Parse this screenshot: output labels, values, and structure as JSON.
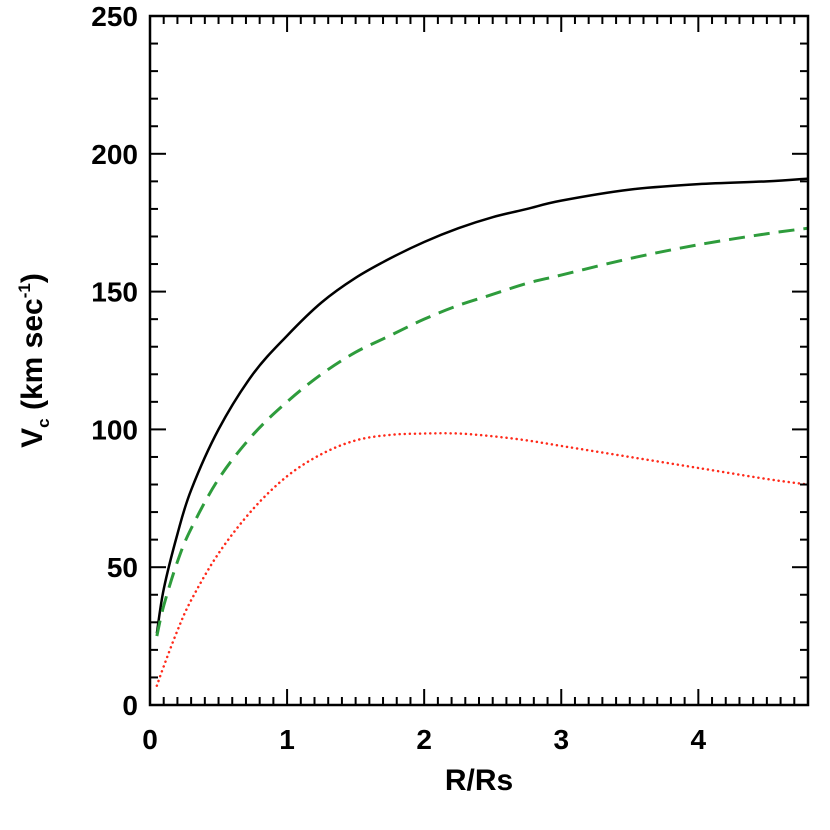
{
  "chart_data": {
    "type": "line",
    "title": "",
    "xlabel": "R/Rs",
    "ylabel": {
      "main": "V",
      "sub": "c",
      "units_start": " (km sec",
      "sup": "-1",
      "units_end": ")"
    },
    "xlim": [
      0,
      4.8
    ],
    "ylim": [
      0,
      250
    ],
    "xticks": [
      0,
      1,
      2,
      3,
      4
    ],
    "yticks": [
      0,
      50,
      100,
      150,
      200,
      250
    ],
    "grid": false,
    "legend": "none",
    "series": [
      {
        "style": "solid",
        "color": "#000000",
        "x": [
          0.05,
          0.1,
          0.2,
          0.3,
          0.5,
          0.75,
          1.0,
          1.25,
          1.5,
          1.75,
          2.0,
          2.25,
          2.5,
          2.75,
          3.0,
          3.5,
          4.0,
          4.5,
          4.8
        ],
        "y": [
          26,
          42,
          62,
          78,
          100,
          120,
          134,
          146,
          155,
          162,
          168,
          173,
          177,
          180,
          183,
          187,
          189,
          190,
          191
        ]
      },
      {
        "style": "dashed",
        "color": "#2e9c3c",
        "x": [
          0.05,
          0.1,
          0.2,
          0.3,
          0.5,
          0.75,
          1.0,
          1.25,
          1.5,
          1.75,
          2.0,
          2.25,
          2.5,
          2.75,
          3.0,
          3.5,
          4.0,
          4.5,
          4.8
        ],
        "y": [
          25,
          36,
          52,
          64,
          82,
          98,
          110,
          120,
          128,
          134,
          140,
          145,
          149,
          153,
          156,
          162,
          167,
          171,
          173
        ]
      },
      {
        "style": "dotted",
        "color": "#ff2a1a",
        "x": [
          0.05,
          0.1,
          0.2,
          0.3,
          0.5,
          0.75,
          1.0,
          1.25,
          1.5,
          1.75,
          2.0,
          2.25,
          2.5,
          2.75,
          3.0,
          3.5,
          4.0,
          4.5,
          4.8
        ],
        "y": [
          7,
          14,
          27,
          38,
          55,
          71,
          83,
          91,
          96,
          98,
          98.5,
          98.5,
          97.5,
          96,
          94,
          90,
          86,
          82,
          80
        ]
      }
    ]
  }
}
